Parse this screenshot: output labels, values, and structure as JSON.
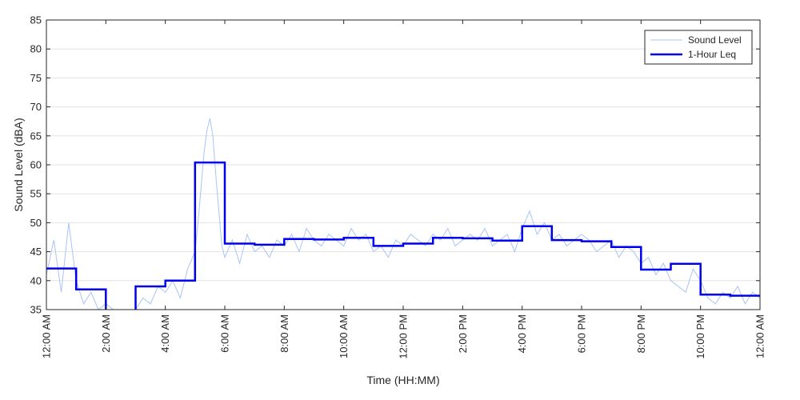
{
  "chart_data": {
    "type": "line",
    "title": "",
    "xlabel": "Time (HH:MM)",
    "ylabel": "Sound Level (dBA)",
    "ylim": [
      35,
      85
    ],
    "xlim_hours": [
      0,
      24
    ],
    "grid": true,
    "legend_position": "top-right",
    "x_ticks": [
      {
        "hour": 0,
        "label": "12:00 AM"
      },
      {
        "hour": 2,
        "label": "2:00 AM"
      },
      {
        "hour": 4,
        "label": "4:00 AM"
      },
      {
        "hour": 6,
        "label": "6:00 AM"
      },
      {
        "hour": 8,
        "label": "8:00 AM"
      },
      {
        "hour": 10,
        "label": "10:00 AM"
      },
      {
        "hour": 12,
        "label": "12:00 PM"
      },
      {
        "hour": 14,
        "label": "2:00 PM"
      },
      {
        "hour": 16,
        "label": "4:00 PM"
      },
      {
        "hour": 18,
        "label": "6:00 PM"
      },
      {
        "hour": 20,
        "label": "8:00 PM"
      },
      {
        "hour": 22,
        "label": "10:00 PM"
      },
      {
        "hour": 24,
        "label": "12:00 AM"
      }
    ],
    "y_ticks": [
      35,
      40,
      45,
      50,
      55,
      60,
      65,
      70,
      75,
      80,
      85
    ],
    "series": [
      {
        "name": "Sound Level",
        "color": "#a9c4f5",
        "style": "thin",
        "hour": [
          0.0,
          0.25,
          0.5,
          0.75,
          1.0,
          1.25,
          1.5,
          1.75,
          2.0,
          2.25,
          2.5,
          2.75,
          3.0,
          3.25,
          3.5,
          3.75,
          4.0,
          4.25,
          4.5,
          4.75,
          5.0,
          5.1,
          5.2,
          5.3,
          5.4,
          5.5,
          5.6,
          5.7,
          5.8,
          5.9,
          6.0,
          6.25,
          6.5,
          6.75,
          7.0,
          7.25,
          7.5,
          7.75,
          8.0,
          8.25,
          8.5,
          8.75,
          9.0,
          9.25,
          9.5,
          9.75,
          10.0,
          10.25,
          10.5,
          10.75,
          11.0,
          11.25,
          11.5,
          11.75,
          12.0,
          12.25,
          12.5,
          12.75,
          13.0,
          13.25,
          13.5,
          13.75,
          14.0,
          14.25,
          14.5,
          14.75,
          15.0,
          15.25,
          15.5,
          15.75,
          16.0,
          16.25,
          16.5,
          16.75,
          17.0,
          17.25,
          17.5,
          17.75,
          18.0,
          18.25,
          18.5,
          18.75,
          19.0,
          19.25,
          19.5,
          19.75,
          20.0,
          20.25,
          20.5,
          20.75,
          21.0,
          21.25,
          21.5,
          21.75,
          22.0,
          22.25,
          22.5,
          22.75,
          23.0,
          23.25,
          23.5,
          23.75,
          24.0
        ],
        "values": [
          41,
          47,
          38,
          50,
          40,
          36,
          38,
          35,
          36,
          35,
          35,
          35,
          35,
          37,
          36,
          39,
          38,
          40,
          37,
          42,
          45,
          50,
          56,
          62,
          66,
          68,
          65,
          58,
          52,
          46,
          44,
          47,
          43,
          48,
          45,
          46,
          44,
          47,
          46,
          48,
          45,
          49,
          47,
          46,
          48,
          47,
          46,
          49,
          47,
          48,
          45,
          46,
          44,
          47,
          46,
          48,
          47,
          46,
          48,
          47,
          49,
          46,
          47,
          48,
          47,
          49,
          46,
          47,
          48,
          45,
          49,
          52,
          48,
          50,
          47,
          48,
          46,
          47,
          48,
          47,
          45,
          46,
          47,
          44,
          46,
          45,
          43,
          44,
          41,
          43,
          40,
          39,
          38,
          42,
          40,
          37,
          36,
          38,
          37,
          39,
          36,
          38,
          37,
          38,
          37
        ]
      },
      {
        "name": "1-Hour Leq",
        "color": "#0000ee",
        "style": "step",
        "hour_start": [
          0,
          1,
          2,
          3,
          4,
          5,
          6,
          7,
          8,
          9,
          10,
          11,
          12,
          13,
          14,
          15,
          16,
          17,
          18,
          19,
          20,
          21,
          22,
          23
        ],
        "values": [
          42.1,
          38.5,
          34.5,
          39.0,
          40.0,
          60.4,
          46.4,
          46.2,
          47.2,
          47.1,
          47.4,
          46.0,
          46.4,
          47.4,
          47.3,
          46.9,
          49.4,
          47.0,
          46.8,
          45.8,
          41.9,
          42.9,
          37.6,
          37.4
        ]
      }
    ]
  }
}
